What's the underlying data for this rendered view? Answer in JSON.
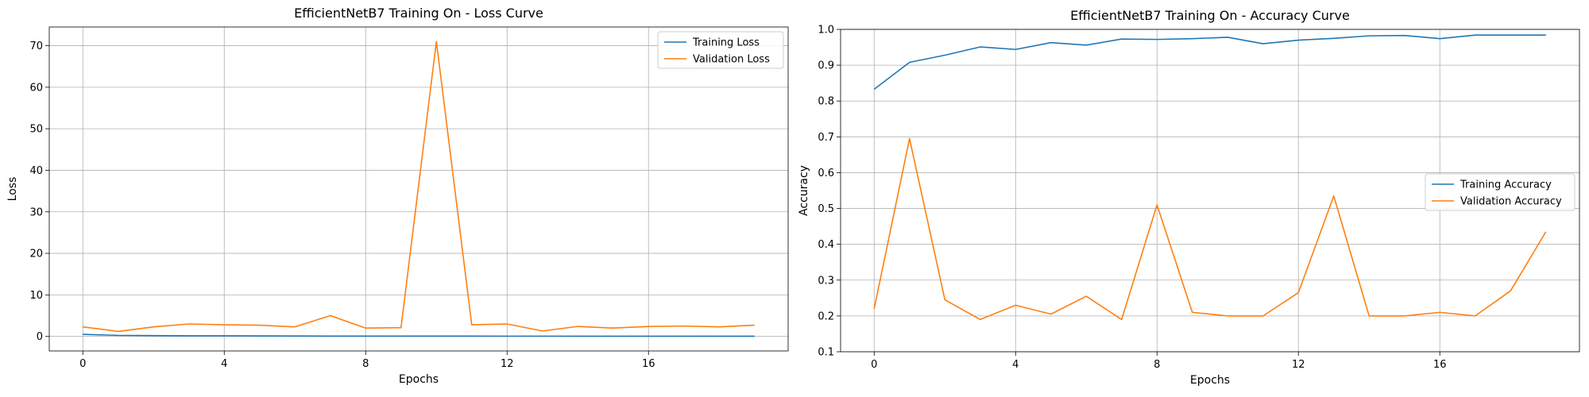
{
  "chart_data": [
    {
      "type": "line",
      "title": "EfficientNetB7 Training On - Loss Curve",
      "xlabel": "Epochs",
      "ylabel": "Loss",
      "xlim": [
        -0.95,
        19.95
      ],
      "ylim": [
        -3.5,
        74.5
      ],
      "xticks": [
        0,
        4,
        8,
        12,
        16
      ],
      "yticks": [
        0,
        10,
        20,
        30,
        40,
        50,
        60,
        70
      ],
      "grid": true,
      "legend": "upper right",
      "x": [
        0,
        1,
        2,
        3,
        4,
        5,
        6,
        7,
        8,
        9,
        10,
        11,
        12,
        13,
        14,
        15,
        16,
        17,
        18,
        19
      ],
      "series": [
        {
          "name": "Training Loss",
          "color": "#1f77b4",
          "values": [
            0.5,
            0.25,
            0.2,
            0.15,
            0.15,
            0.12,
            0.1,
            0.08,
            0.08,
            0.07,
            0.07,
            0.07,
            0.06,
            0.06,
            0.05,
            0.05,
            0.05,
            0.04,
            0.04,
            0.04
          ]
        },
        {
          "name": "Validation Loss",
          "color": "#ff7f0e",
          "values": [
            2.3,
            1.2,
            2.3,
            3.0,
            2.8,
            2.7,
            2.3,
            5.0,
            2.0,
            2.1,
            71.0,
            2.8,
            3.0,
            1.3,
            2.4,
            2.0,
            2.4,
            2.5,
            2.3,
            2.7
          ]
        }
      ]
    },
    {
      "type": "line",
      "title": "EfficientNetB7 Training On - Accuracy Curve",
      "xlabel": "Epochs",
      "ylabel": "Accuracy",
      "xlim": [
        -0.95,
        19.95
      ],
      "ylim": [
        0.1,
        1.0
      ],
      "xticks": [
        0,
        4,
        8,
        12,
        16
      ],
      "yticks": [
        0.1,
        0.2,
        0.3,
        0.4,
        0.5,
        0.6,
        0.7,
        0.8,
        0.9,
        1.0
      ],
      "grid": true,
      "legend": "center right",
      "x": [
        0,
        1,
        2,
        3,
        4,
        5,
        6,
        7,
        8,
        9,
        10,
        11,
        12,
        13,
        14,
        15,
        16,
        17,
        18,
        19
      ],
      "series": [
        {
          "name": "Training Accuracy",
          "color": "#1f77b4",
          "values": [
            0.833,
            0.908,
            0.928,
            0.951,
            0.944,
            0.963,
            0.956,
            0.973,
            0.972,
            0.974,
            0.978,
            0.96,
            0.97,
            0.975,
            0.982,
            0.983,
            0.974,
            0.984,
            0.984,
            0.984
          ]
        },
        {
          "name": "Validation Accuracy",
          "color": "#ff7f0e",
          "values": [
            0.22,
            0.695,
            0.245,
            0.19,
            0.23,
            0.205,
            0.255,
            0.19,
            0.51,
            0.21,
            0.2,
            0.2,
            0.265,
            0.535,
            0.2,
            0.2,
            0.21,
            0.2,
            0.27,
            0.435
          ]
        }
      ]
    }
  ]
}
